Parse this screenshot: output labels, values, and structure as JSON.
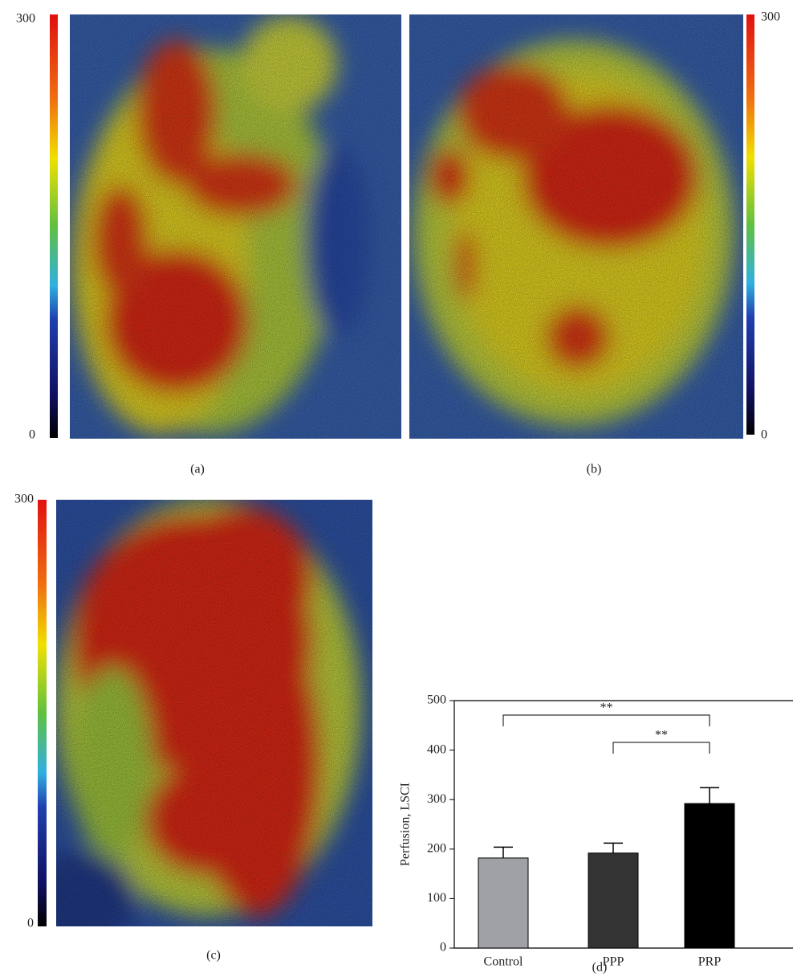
{
  "panels": [
    {
      "label": "(a)",
      "colorbar_ticks": [
        0,
        300
      ]
    },
    {
      "label": "(b)",
      "colorbar_ticks": [
        0,
        300
      ]
    },
    {
      "label": "(c)",
      "colorbar_ticks": [
        0,
        300
      ]
    }
  ],
  "chart_data": {
    "type": "bar",
    "panel_label": "(d)",
    "ylabel": "Perfusion, LSCI",
    "categories": [
      "Control",
      "PPP",
      "PRP"
    ],
    "values": [
      182,
      192,
      292
    ],
    "errors": [
      22,
      20,
      32
    ],
    "colors": [
      "#a0a1a5",
      "#333333",
      "#000000"
    ],
    "ylim": [
      0,
      500
    ],
    "yticks": [
      0,
      100,
      200,
      300,
      400,
      500
    ],
    "annotations": [
      "**",
      "**"
    ]
  }
}
